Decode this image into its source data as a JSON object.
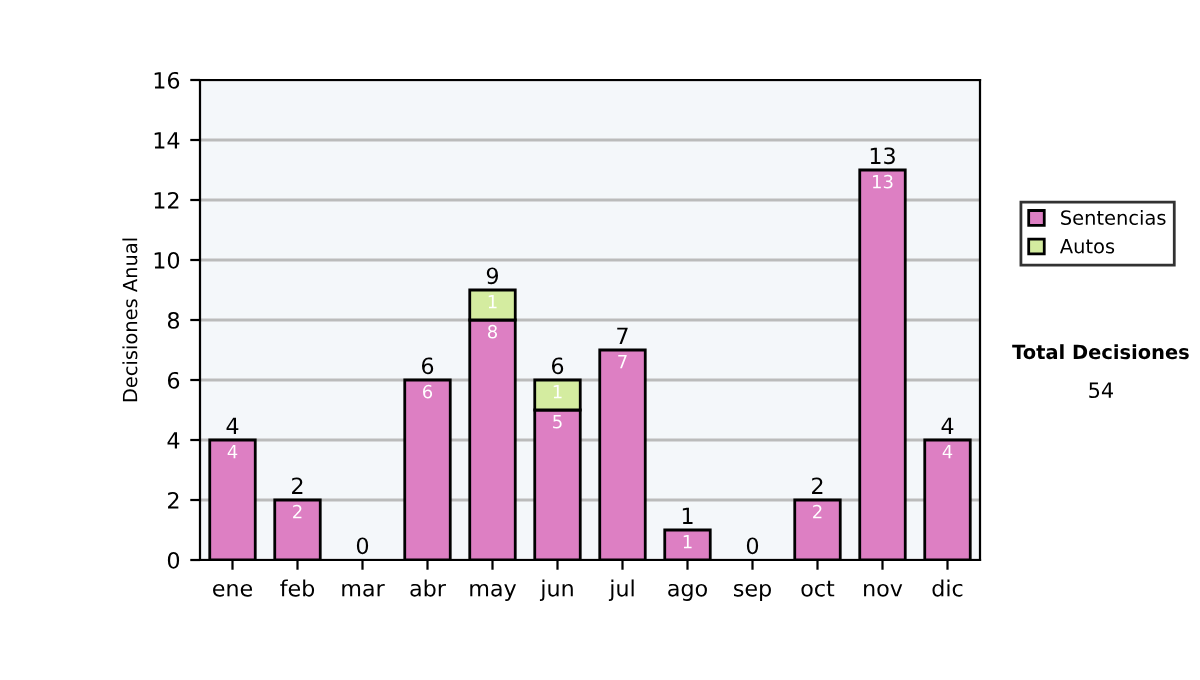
{
  "chart_data": {
    "type": "bar",
    "stacked": true,
    "ylabel": "Decisiones Anual",
    "categories": [
      "ene",
      "feb",
      "mar",
      "abr",
      "may",
      "jun",
      "jul",
      "ago",
      "sep",
      "oct",
      "nov",
      "dic"
    ],
    "series": [
      {
        "name": "Sentencias",
        "color": "#dd7fc3",
        "values": [
          4,
          2,
          0,
          6,
          8,
          5,
          7,
          1,
          0,
          2,
          13,
          4
        ],
        "value_labels": [
          "4",
          "2",
          null,
          "6",
          "8",
          "5",
          "7",
          "1",
          null,
          "2",
          "13",
          "4"
        ]
      },
      {
        "name": "Autos",
        "color": "#d4eca0",
        "values": [
          null,
          null,
          null,
          null,
          1,
          1,
          null,
          null,
          null,
          null,
          null,
          null
        ],
        "value_labels": [
          null,
          null,
          null,
          null,
          "1",
          "1",
          null,
          null,
          null,
          null,
          null,
          null
        ]
      }
    ],
    "totals": [
      "4",
      "2",
      "0",
      "6",
      "9",
      "6",
      "7",
      "1",
      "0",
      "2",
      "13",
      "4"
    ],
    "ylim": [
      0,
      16
    ],
    "yticks": [
      0,
      2,
      4,
      6,
      8,
      10,
      12,
      14,
      16
    ],
    "grid": "y",
    "legend": "right",
    "annotations": [
      "Total Decisiones",
      "54"
    ]
  }
}
